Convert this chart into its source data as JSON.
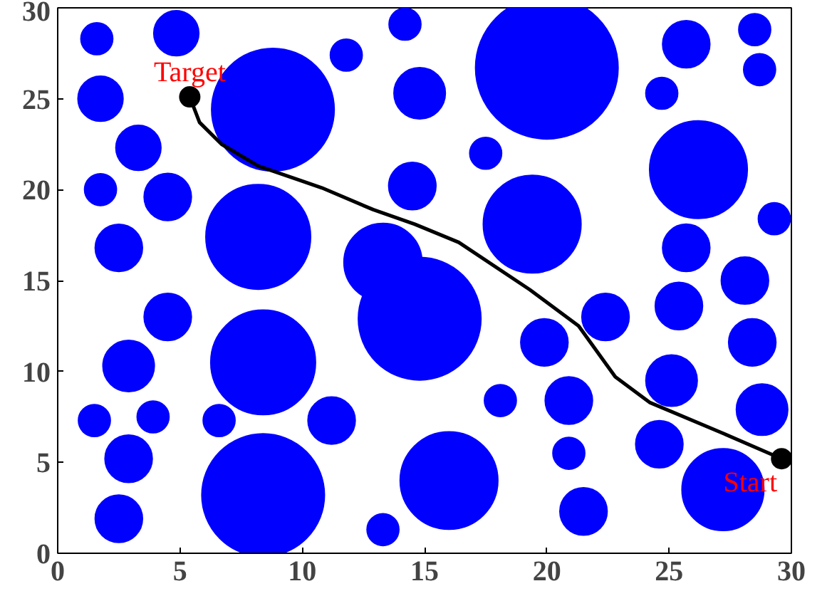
{
  "chart_data": {
    "type": "bubble",
    "xlim": [
      0,
      30
    ],
    "ylim": [
      0,
      30
    ],
    "xticks": [
      0,
      5,
      10,
      15,
      20,
      25,
      30
    ],
    "yticks": [
      0,
      5,
      10,
      15,
      20,
      25,
      30
    ],
    "grid": false,
    "series": [
      {
        "color": "#0000ff",
        "x": [
          1.6,
          4.85,
          11.8,
          14.2,
          20.0,
          25.7,
          28.5,
          28.7,
          1.75,
          8.8,
          14.8,
          24.7,
          3.3,
          17.5,
          26.2,
          1.75,
          4.5,
          14.5,
          8.2,
          19.4,
          2.5,
          13.3,
          29.3,
          25.7,
          28.1,
          25.4,
          14.8,
          4.5,
          22.4,
          19.9,
          28.4,
          2.9,
          8.4,
          25.1,
          18.1,
          20.9,
          1.5,
          3.9,
          6.6,
          11.2,
          28.8,
          24.6,
          2.9,
          20.9,
          16.0,
          8.4,
          27.2,
          2.5,
          21.5,
          13.3
        ],
        "values": [
          28.3,
          28.6,
          27.4,
          29.1,
          26.7,
          28.0,
          28.8,
          26.6,
          25.0,
          24.4,
          25.3,
          25.3,
          22.3,
          22.0,
          21.1,
          20.0,
          19.6,
          20.2,
          17.4,
          18.1,
          16.8,
          16.0,
          18.4,
          16.8,
          15.0,
          13.6,
          12.9,
          13.0,
          13.0,
          11.6,
          11.6,
          10.3,
          10.5,
          9.5,
          8.4,
          8.4,
          7.3,
          7.5,
          7.3,
          7.3,
          7.9,
          6.0,
          5.2,
          5.5,
          4.0,
          3.2,
          3.5,
          1.9,
          2.3,
          1.3
        ],
        "sizes": [
          0.05,
          0.1,
          0.05,
          0.05,
          1,
          0.11,
          0.05,
          0.05,
          0.1,
          0.74,
          0.13,
          0.05,
          0.1,
          0.05,
          0.47,
          0.05,
          0.11,
          0.11,
          0.54,
          0.47,
          0.11,
          0.3,
          0.05,
          0.11,
          0.11,
          0.11,
          0.74,
          0.11,
          0.11,
          0.11,
          0.11,
          0.13,
          0.54,
          0.13,
          0.05,
          0.11,
          0.05,
          0.05,
          0.05,
          0.11,
          0.13,
          0.11,
          0.11,
          0.05,
          0.47,
          0.74,
          0.33,
          0.11,
          0.11,
          0.05
        ]
      },
      {
        "type": "line",
        "color": "#000000",
        "x": [
          29.6,
          27.2,
          24.2,
          22.8,
          21.3,
          19.3,
          16.4,
          14.6,
          12.9,
          10.8,
          8.2,
          6.7,
          5.8,
          5.4
        ],
        "values": [
          5.2,
          6.6,
          8.3,
          9.7,
          12.5,
          14.5,
          17.1,
          18.1,
          18.9,
          20.1,
          21.3,
          22.5,
          23.7,
          25.1
        ]
      },
      {
        "type": "scatter",
        "color": "#000000",
        "marker": "circle",
        "x": [
          29.6,
          5.4
        ],
        "values": [
          5.2,
          25.1
        ]
      }
    ],
    "annotations": [
      {
        "text": "Target",
        "x": 5.4,
        "y": 25.1
      },
      {
        "text": "Start",
        "x": 29.6,
        "y": 5.2
      }
    ]
  }
}
